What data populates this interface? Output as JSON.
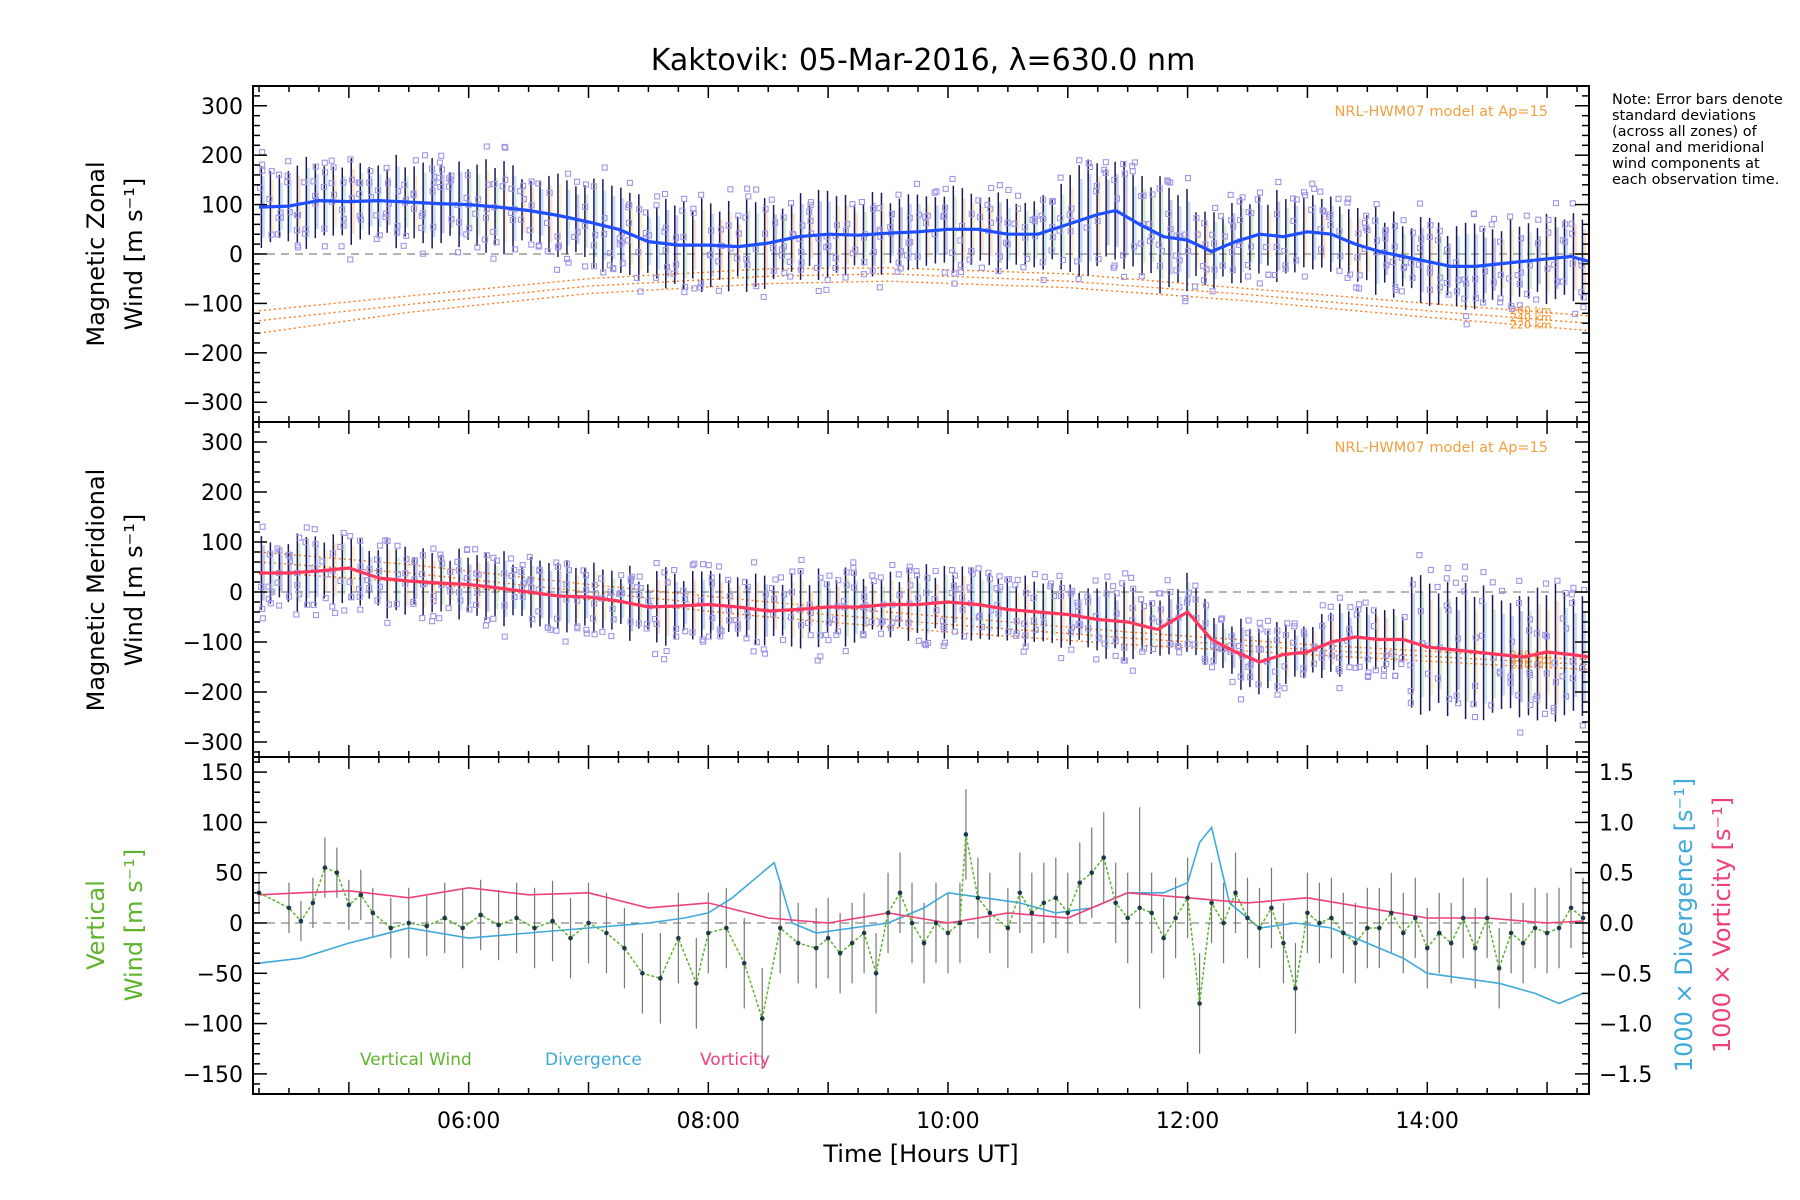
{
  "chart_data": [
    {
      "type": "line",
      "title": "Kaktovik: 05-Mar-2016, λ=630.0 nm",
      "panel": "zonal",
      "ylabel": [
        "Magnetic Zonal",
        "Wind [m s⁻¹]"
      ],
      "ylim": [
        -340,
        340
      ],
      "yticks": [
        -300,
        -200,
        -100,
        0,
        100,
        200,
        300
      ],
      "xlim": [
        4.2,
        15.35
      ],
      "xticks": [
        "06:00",
        "08:00",
        "10:00",
        "12:00",
        "14:00"
      ],
      "model_label": "NRL-HWM07 model at Ap=15",
      "model_altitudes": [
        "260 km",
        "240 km",
        "220 km"
      ],
      "mean_color": "#1f4fff",
      "mean_x": [
        4.25,
        4.5,
        4.75,
        5.0,
        5.25,
        5.5,
        5.75,
        6.0,
        6.25,
        6.5,
        6.75,
        7.0,
        7.25,
        7.5,
        7.75,
        8.0,
        8.25,
        8.5,
        8.75,
        9.0,
        9.25,
        9.5,
        9.75,
        10.0,
        10.25,
        10.5,
        10.75,
        11.0,
        11.25,
        11.4,
        11.6,
        11.8,
        12.0,
        12.2,
        12.4,
        12.6,
        12.8,
        13.0,
        13.2,
        13.4,
        13.6,
        13.8,
        14.0,
        14.2,
        14.4,
        14.6,
        14.8,
        15.0,
        15.2,
        15.35
      ],
      "mean_y": [
        95,
        97,
        108,
        106,
        108,
        105,
        102,
        100,
        95,
        88,
        78,
        65,
        50,
        25,
        18,
        18,
        15,
        22,
        35,
        40,
        38,
        42,
        45,
        50,
        50,
        40,
        40,
        60,
        80,
        88,
        60,
        35,
        28,
        5,
        25,
        40,
        35,
        45,
        40,
        20,
        5,
        -5,
        -15,
        -25,
        -25,
        -20,
        -15,
        -10,
        -5,
        -15
      ],
      "model_x": [
        4.25,
        5.5,
        7.0,
        8.5,
        9.5,
        11.0,
        12.5,
        14.0,
        15.35
      ],
      "model_y": [
        [
          -115,
          -85,
          -50,
          -30,
          -28,
          -40,
          -70,
          -100,
          -125
        ],
        [
          -135,
          -102,
          -65,
          -45,
          -40,
          -55,
          -82,
          -115,
          -140
        ],
        [
          -160,
          -118,
          -80,
          -60,
          -55,
          -68,
          -95,
          -128,
          -155
        ]
      ]
    },
    {
      "type": "line",
      "panel": "meridional",
      "ylabel": [
        "Magnetic Meridional",
        "Wind [m s⁻¹]"
      ],
      "ylim": [
        -330,
        340
      ],
      "yticks": [
        -300,
        -200,
        -100,
        0,
        100,
        200,
        300
      ],
      "xlim": [
        4.2,
        15.35
      ],
      "model_label": "NRL-HWM07 model at Ap=15",
      "model_altitudes": [
        "260 km",
        "240 km",
        "220 km"
      ],
      "mean_color": "#ff3860",
      "mean_x": [
        4.25,
        4.5,
        4.75,
        5.0,
        5.25,
        5.5,
        5.75,
        6.0,
        6.25,
        6.5,
        6.75,
        7.0,
        7.25,
        7.5,
        7.75,
        8.0,
        8.25,
        8.5,
        8.75,
        9.0,
        9.25,
        9.5,
        9.75,
        10.0,
        10.25,
        10.5,
        10.75,
        11.0,
        11.25,
        11.5,
        11.75,
        12.0,
        12.2,
        12.4,
        12.6,
        12.8,
        13.0,
        13.2,
        13.4,
        13.6,
        13.8,
        14.0,
        14.2,
        14.4,
        14.6,
        14.8,
        15.0,
        15.2,
        15.35
      ],
      "mean_y": [
        38,
        38,
        42,
        48,
        28,
        22,
        18,
        15,
        8,
        0,
        -8,
        -10,
        -18,
        -30,
        -28,
        -25,
        -30,
        -38,
        -35,
        -30,
        -30,
        -25,
        -25,
        -20,
        -25,
        -35,
        -40,
        -45,
        -55,
        -60,
        -75,
        -40,
        -95,
        -120,
        -140,
        -125,
        -120,
        -100,
        -90,
        -95,
        -95,
        -110,
        -115,
        -120,
        -125,
        -130,
        -120,
        -125,
        -130
      ],
      "model_x": [
        4.25,
        5.5,
        7.0,
        8.5,
        10.0,
        11.5,
        13.0,
        14.5,
        15.35
      ],
      "model_y": [
        [
          80,
          55,
          15,
          -20,
          -50,
          -80,
          -105,
          -125,
          -135
        ],
        [
          60,
          38,
          0,
          -35,
          -65,
          -92,
          -115,
          -135,
          -145
        ],
        [
          40,
          20,
          -15,
          -50,
          -80,
          -105,
          -125,
          -145,
          -155
        ]
      ]
    },
    {
      "type": "line",
      "panel": "vertical",
      "ylabel": [
        "Vertical",
        "Wind [m s⁻¹]"
      ],
      "ylim": [
        -170,
        165
      ],
      "yticks": [
        -150,
        -100,
        -50,
        0,
        50,
        100,
        150
      ],
      "right_axis_ylim": [
        -1.7,
        1.65
      ],
      "right_axis_ticks": [
        "−1.5",
        "−1.0",
        "−0.5",
        "0.0",
        "0.5",
        "1.0",
        "1.5"
      ],
      "right_label_divergence": "1000 × Divergence [s⁻¹]",
      "right_label_vorticity": "1000 × Vorticity [s⁻¹]",
      "xlim": [
        4.2,
        15.35
      ],
      "xlabel": "Time [Hours UT]",
      "legend": [
        "Vertical Wind",
        "Divergence",
        "Vorticity"
      ],
      "colors": {
        "vertical": "#5fb42e",
        "divergence": "#3fa9dc",
        "vorticity": "#f0407a"
      },
      "vertical_x": [
        4.25,
        4.5,
        4.6,
        4.7,
        4.8,
        4.9,
        5.0,
        5.1,
        5.2,
        5.35,
        5.5,
        5.65,
        5.8,
        5.95,
        6.1,
        6.25,
        6.4,
        6.55,
        6.7,
        6.85,
        7.0,
        7.15,
        7.3,
        7.45,
        7.6,
        7.75,
        7.9,
        8.0,
        8.15,
        8.3,
        8.45,
        8.6,
        8.75,
        8.9,
        9.0,
        9.1,
        9.2,
        9.3,
        9.4,
        9.5,
        9.6,
        9.7,
        9.8,
        9.9,
        10.0,
        10.1,
        10.15,
        10.25,
        10.35,
        10.5,
        10.6,
        10.7,
        10.8,
        10.9,
        11.0,
        11.1,
        11.2,
        11.3,
        11.4,
        11.5,
        11.6,
        11.7,
        11.8,
        11.9,
        12.0,
        12.1,
        12.2,
        12.3,
        12.4,
        12.5,
        12.6,
        12.7,
        12.8,
        12.9,
        13.0,
        13.1,
        13.2,
        13.3,
        13.4,
        13.5,
        13.6,
        13.7,
        13.8,
        13.9,
        14.0,
        14.1,
        14.2,
        14.3,
        14.4,
        14.5,
        14.6,
        14.7,
        14.8,
        14.9,
        15.0,
        15.1,
        15.2,
        15.3
      ],
      "vertical_y": [
        30,
        15,
        2,
        20,
        55,
        50,
        18,
        28,
        10,
        -5,
        0,
        -3,
        5,
        -5,
        8,
        -2,
        5,
        -5,
        2,
        -15,
        0,
        -10,
        -25,
        -50,
        -55,
        -15,
        -60,
        -10,
        -5,
        -40,
        -95,
        -5,
        -20,
        -25,
        -15,
        -30,
        -20,
        -10,
        -50,
        10,
        30,
        0,
        -20,
        0,
        -10,
        0,
        88,
        25,
        10,
        -5,
        30,
        10,
        20,
        25,
        10,
        40,
        50,
        65,
        20,
        5,
        15,
        10,
        -15,
        5,
        25,
        -80,
        20,
        0,
        30,
        5,
        -5,
        15,
        -20,
        -65,
        10,
        0,
        5,
        -10,
        -20,
        -5,
        -5,
        10,
        -10,
        5,
        -25,
        -10,
        -20,
        5,
        -25,
        5,
        -45,
        -10,
        -20,
        -5,
        -10,
        -5,
        15,
        5
      ],
      "vertical_err": [
        20,
        25,
        20,
        25,
        30,
        25,
        25,
        25,
        25,
        30,
        35,
        30,
        35,
        40,
        35,
        35,
        35,
        40,
        40,
        40,
        40,
        40,
        40,
        40,
        45,
        45,
        45,
        40,
        40,
        45,
        50,
        45,
        40,
        40,
        40,
        40,
        40,
        40,
        40,
        40,
        40,
        40,
        40,
        40,
        40,
        40,
        45,
        40,
        40,
        40,
        40,
        40,
        40,
        40,
        40,
        40,
        45,
        45,
        40,
        45,
        100,
        40,
        40,
        40,
        40,
        50,
        40,
        40,
        40,
        40,
        40,
        40,
        40,
        45,
        40,
        40,
        40,
        40,
        40,
        40,
        40,
        40,
        40,
        40,
        40,
        40,
        40,
        40,
        40,
        40,
        40,
        40,
        40,
        40,
        40,
        40,
        40,
        40
      ],
      "divergence_x": [
        4.25,
        4.6,
        5.0,
        5.5,
        6.0,
        6.5,
        7.0,
        7.5,
        7.8,
        8.0,
        8.2,
        8.4,
        8.55,
        8.7,
        8.9,
        9.2,
        9.5,
        9.8,
        10.0,
        10.3,
        10.6,
        10.9,
        11.2,
        11.5,
        11.8,
        12.0,
        12.1,
        12.2,
        12.35,
        12.6,
        12.9,
        13.2,
        13.5,
        13.8,
        14.0,
        14.3,
        14.6,
        14.9,
        15.1,
        15.3
      ],
      "divergence_y": [
        -0.4,
        -0.35,
        -0.2,
        -0.05,
        -0.15,
        -0.1,
        -0.05,
        0.0,
        0.05,
        0.1,
        0.25,
        0.45,
        0.6,
        0.0,
        -0.1,
        -0.05,
        0.0,
        0.15,
        0.3,
        0.25,
        0.2,
        0.1,
        0.15,
        0.3,
        0.3,
        0.4,
        0.8,
        0.95,
        0.2,
        -0.05,
        0.0,
        -0.05,
        -0.2,
        -0.35,
        -0.5,
        -0.55,
        -0.6,
        -0.7,
        -0.8,
        -0.7
      ],
      "vorticity_x": [
        4.25,
        4.6,
        5.0,
        5.5,
        6.0,
        6.5,
        7.0,
        7.5,
        8.0,
        8.5,
        9.0,
        9.5,
        10.0,
        10.5,
        11.0,
        11.5,
        12.0,
        12.5,
        13.0,
        13.5,
        14.0,
        14.5,
        15.0,
        15.3
      ],
      "vorticity_y": [
        0.28,
        0.3,
        0.32,
        0.25,
        0.35,
        0.28,
        0.3,
        0.15,
        0.2,
        0.05,
        0.0,
        0.1,
        0.0,
        0.1,
        0.05,
        0.3,
        0.25,
        0.2,
        0.25,
        0.15,
        0.05,
        0.05,
        0.0,
        0.02
      ]
    }
  ],
  "note_text": "Note: Error bars denote standard deviations (across all zones) of zonal and meridional wind components at each observation time."
}
